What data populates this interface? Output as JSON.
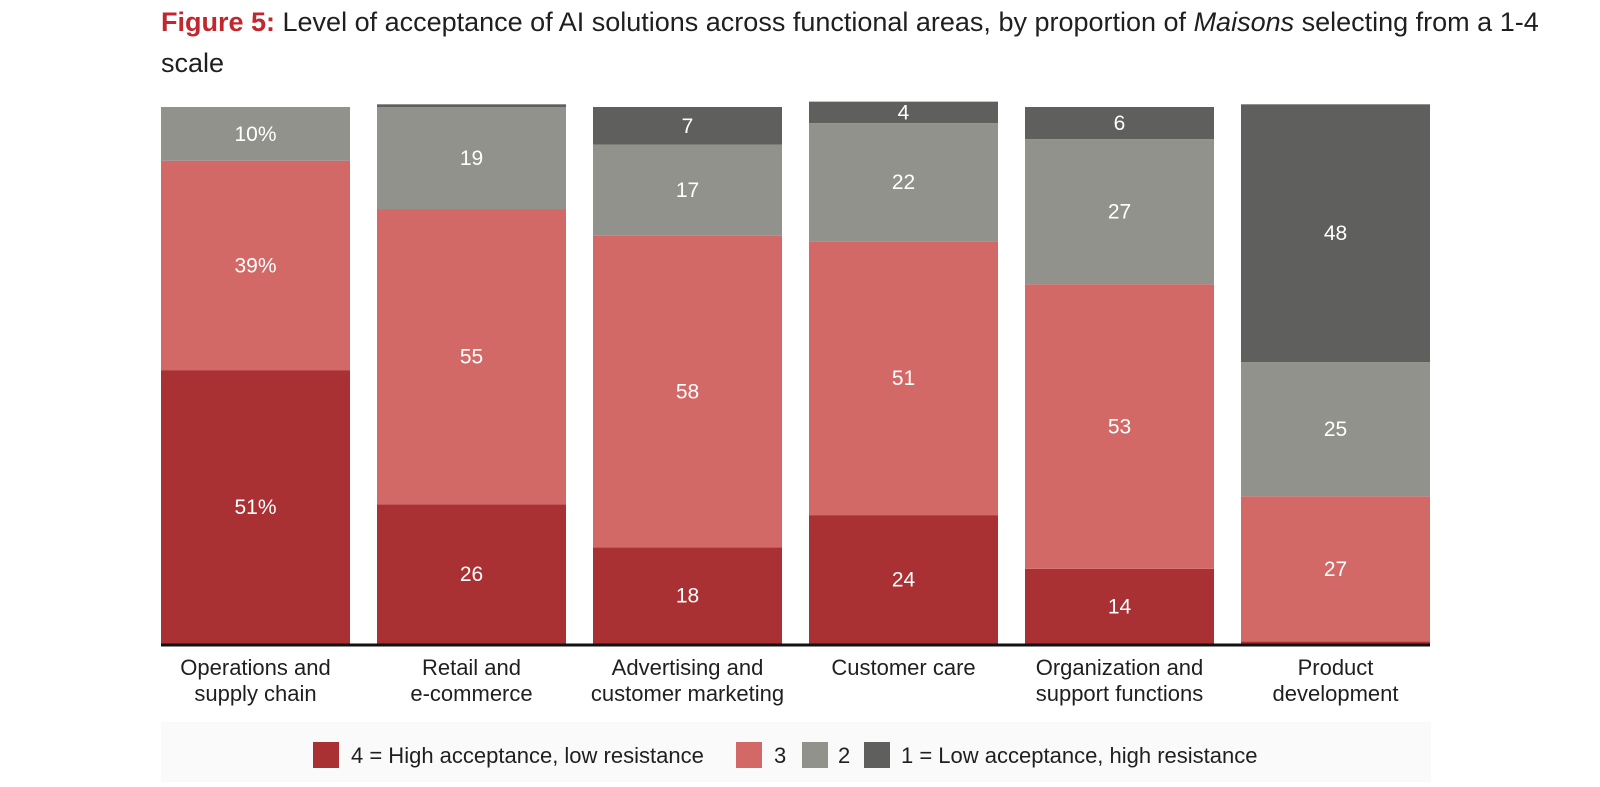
{
  "figure": {
    "label": "Figure 5:",
    "title_main": " Level of acceptance of AI solutions across functional areas, by proportion of ",
    "title_italic": "Maisons",
    "title_end": " selecting from a 1-4 scale"
  },
  "colors": {
    "level4": "#a93033",
    "level3": "#d36966",
    "level2": "#92928d",
    "level1": "#5f5f5d",
    "axis": "#111111"
  },
  "chart_data": {
    "type": "bar",
    "stacked": true,
    "orientation": "vertical",
    "ylim": [
      0,
      100
    ],
    "categories": [
      [
        "Operations and",
        "supply chain"
      ],
      [
        "Retail and",
        "e-commerce"
      ],
      [
        "Advertising and",
        "customer marketing"
      ],
      [
        "Customer care"
      ],
      [
        "Organization and",
        "support functions"
      ],
      [
        "Product",
        "development"
      ]
    ],
    "series": [
      {
        "name": "4 = High acceptance, low resistance",
        "color_key": "level4",
        "values": [
          51,
          26,
          18,
          24,
          14,
          0.5
        ],
        "labels": [
          "51%",
          "26",
          "18",
          "24",
          "14",
          ""
        ]
      },
      {
        "name": "3",
        "color_key": "level3",
        "values": [
          39,
          55,
          58,
          51,
          53,
          27
        ],
        "labels": [
          "39%",
          "55",
          "58",
          "51",
          "53",
          "27"
        ]
      },
      {
        "name": "2",
        "color_key": "level2",
        "values": [
          10,
          19,
          17,
          22,
          27,
          25
        ],
        "labels": [
          "10%",
          "19",
          "17",
          "22",
          "27",
          "25"
        ]
      },
      {
        "name": "1  = Low acceptance, high resistance",
        "color_key": "level1",
        "values": [
          0,
          0.5,
          7,
          4,
          6,
          48
        ],
        "labels": [
          "",
          "",
          "7",
          "4",
          "6",
          "48"
        ]
      }
    ],
    "legend_position": "bottom",
    "grid": false
  }
}
